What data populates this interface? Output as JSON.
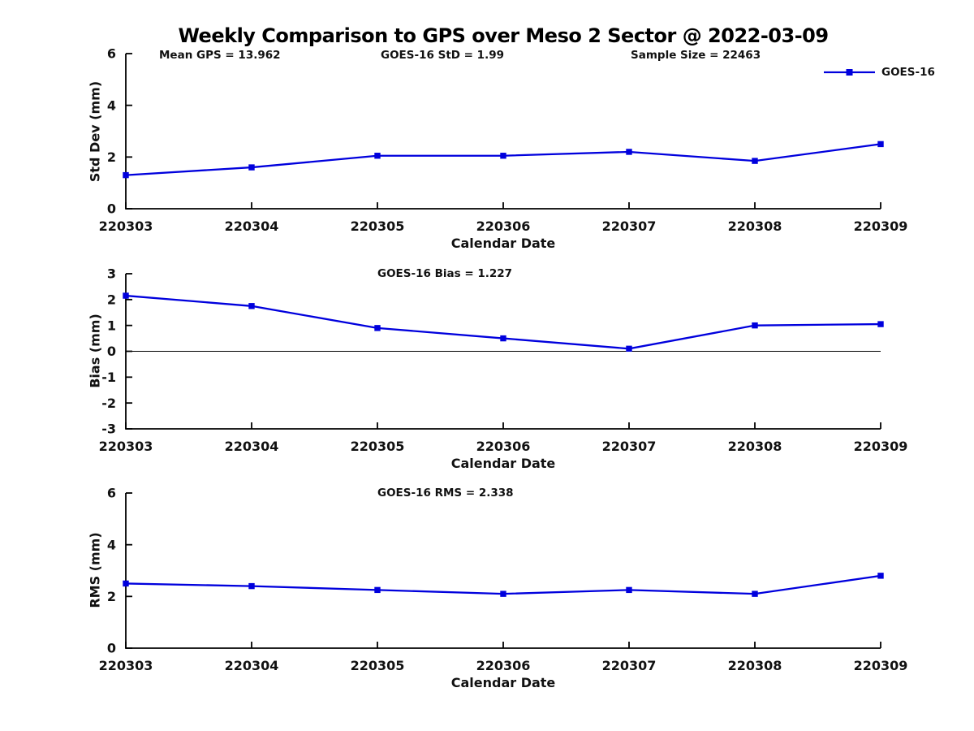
{
  "title": "Weekly Comparison to GPS over Meso 2 Sector @ 2022-03-09",
  "colors": {
    "series": "#0000dd",
    "axis": "#000000",
    "text": "#111111",
    "background": "#ffffff"
  },
  "chart_data": [
    {
      "type": "line",
      "ylabel": "Std Dev (mm)",
      "xlabel": "Calendar Date",
      "categories": [
        "220303",
        "220304",
        "220305",
        "220306",
        "220307",
        "220308",
        "220309"
      ],
      "series": [
        {
          "name": "GOES-16",
          "values": [
            1.3,
            1.6,
            2.05,
            2.05,
            2.2,
            1.85,
            2.5
          ],
          "color": "#0000dd",
          "marker": "square"
        }
      ],
      "ylim": [
        0,
        6
      ],
      "yticks": [
        0,
        2,
        4,
        6
      ],
      "annotations": [
        "Mean GPS = 13.962",
        "GOES-16 StD = 1.99",
        "Sample Size = 22463"
      ],
      "legend_position": "top-right",
      "grid": false
    },
    {
      "type": "line",
      "ylabel": "Bias (mm)",
      "xlabel": "Calendar Date",
      "categories": [
        "220303",
        "220304",
        "220305",
        "220306",
        "220307",
        "220308",
        "220309"
      ],
      "series": [
        {
          "name": "GOES-16",
          "values": [
            2.15,
            1.75,
            0.9,
            0.5,
            0.1,
            1.0,
            1.05
          ],
          "color": "#0000dd",
          "marker": "square"
        }
      ],
      "ylim": [
        -3,
        3
      ],
      "yticks": [
        -3,
        -2,
        -1,
        0,
        1,
        2,
        3
      ],
      "annotation": "GOES-16 Bias  = 1.227",
      "zero_line": true,
      "grid": false
    },
    {
      "type": "line",
      "ylabel": "RMS (mm)",
      "xlabel": "Calendar Date",
      "categories": [
        "220303",
        "220304",
        "220305",
        "220306",
        "220307",
        "220308",
        "220309"
      ],
      "series": [
        {
          "name": "GOES-16",
          "values": [
            2.5,
            2.4,
            2.25,
            2.1,
            2.25,
            2.1,
            2.8
          ],
          "color": "#0000dd",
          "marker": "square"
        }
      ],
      "ylim": [
        0,
        6
      ],
      "yticks": [
        0,
        2,
        4,
        6
      ],
      "annotation": "GOES-16 RMS = 2.338",
      "grid": false
    }
  ]
}
